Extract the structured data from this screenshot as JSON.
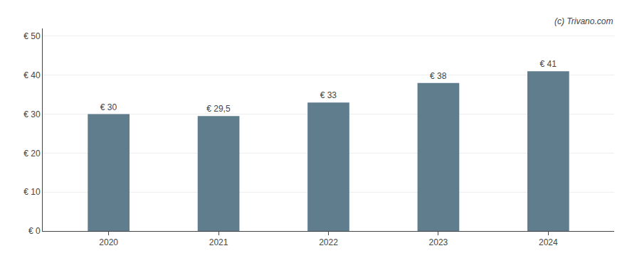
{
  "chart_data": {
    "type": "bar",
    "x": [
      2020,
      2021,
      2022,
      2023,
      2024
    ],
    "values": [
      30,
      29.5,
      33,
      38,
      41
    ],
    "value_labels": [
      "€ 30",
      "€ 29,5",
      "€ 33",
      "€ 38",
      "€ 41"
    ],
    "data_labels": true,
    "color": "#607d8e",
    "xlim": [
      2019.4,
      2024.6
    ],
    "xticks": [
      2020,
      2021,
      2022,
      2023,
      2024
    ],
    "ylim": [
      0,
      52
    ],
    "yticks": [
      {
        "value": 0,
        "label": "€ 0"
      },
      {
        "value": 10,
        "label": "€ 10"
      },
      {
        "value": 20,
        "label": "€ 20"
      },
      {
        "value": 30,
        "label": "€ 30"
      },
      {
        "value": 40,
        "label": "€ 40"
      },
      {
        "value": 50,
        "label": "€ 50"
      }
    ],
    "grid": true,
    "annotations": [
      "(c) Trivano.com"
    ]
  }
}
